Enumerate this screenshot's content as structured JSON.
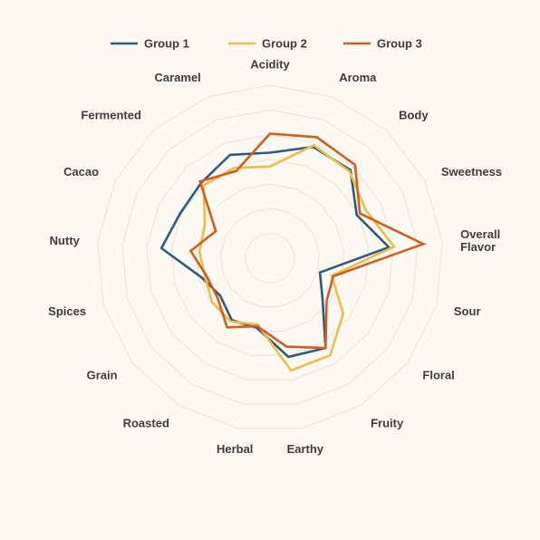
{
  "chart_data": {
    "type": "radar",
    "axes": [
      "Acidity",
      "Aroma",
      "Body",
      "Sweetness",
      "Overall Flavor",
      "Sour",
      "Floral",
      "Fruity",
      "Earthy",
      "Herbal",
      "Roasted",
      "Grain",
      "Spices",
      "Nutty",
      "Cacao",
      "Fermented",
      "Caramel"
    ],
    "range": [
      0,
      10
    ],
    "grid_levels": 7,
    "legend_position": "top",
    "series": [
      {
        "name": "Group 1",
        "color": "#2d5b7e",
        "values": [
          6.1,
          6.9,
          6.9,
          5.6,
          6.9,
          3.0,
          3.8,
          6.1,
          5.8,
          4.1,
          4.2,
          3.6,
          4.1,
          6.3,
          5.8,
          5.9,
          6.4
        ]
      },
      {
        "name": "Group 2",
        "color": "#ecbd49",
        "values": [
          5.3,
          7.0,
          6.8,
          6.2,
          7.2,
          3.7,
          5.3,
          6.6,
          6.6,
          3.9,
          4.3,
          4.2,
          3.9,
          4.1,
          4.2,
          5.7,
          5.6
        ]
      },
      {
        "name": "Group 3",
        "color": "#d35d21",
        "values": [
          7.2,
          7.5,
          7.3,
          5.8,
          8.9,
          3.8,
          4.1,
          6.1,
          5.2,
          4.0,
          4.7,
          3.8,
          3.8,
          4.6,
          3.5,
          6.0,
          5.4
        ]
      }
    ]
  }
}
